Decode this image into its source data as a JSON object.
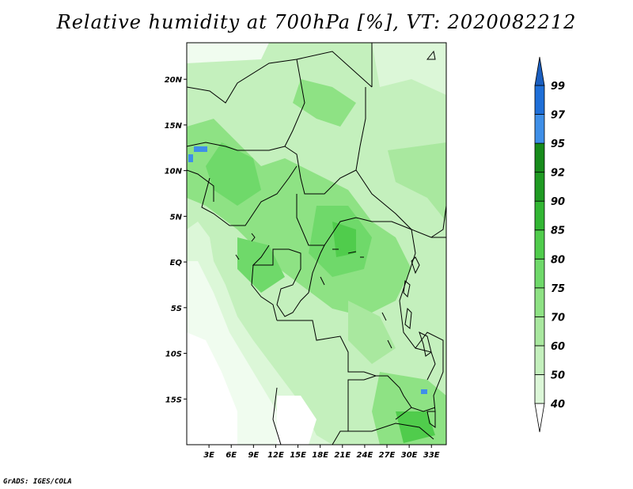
{
  "title": "Relative humidity at 700hPa [%], VT: 2020082212",
  "credit": "GrADS: IGES/COLA",
  "map": {
    "lon_range": [
      0,
      35
    ],
    "lat_range": [
      -20,
      24
    ],
    "x_ticks": [
      {
        "value": 3,
        "label": "3E"
      },
      {
        "value": 6,
        "label": "6E"
      },
      {
        "value": 9,
        "label": "9E"
      },
      {
        "value": 12,
        "label": "12E"
      },
      {
        "value": 15,
        "label": "15E"
      },
      {
        "value": 18,
        "label": "18E"
      },
      {
        "value": 21,
        "label": "21E"
      },
      {
        "value": 24,
        "label": "24E"
      },
      {
        "value": 27,
        "label": "27E"
      },
      {
        "value": 30,
        "label": "30E"
      },
      {
        "value": 33,
        "label": "33E"
      }
    ],
    "y_ticks": [
      {
        "value": 20,
        "label": "20N"
      },
      {
        "value": 15,
        "label": "15N"
      },
      {
        "value": 10,
        "label": "10N"
      },
      {
        "value": 5,
        "label": "5N"
      },
      {
        "value": 0,
        "label": "EQ"
      },
      {
        "value": -5,
        "label": "5S"
      },
      {
        "value": -10,
        "label": "10S"
      },
      {
        "value": -15,
        "label": "15S"
      }
    ]
  },
  "colorbar": {
    "levels": [
      {
        "label": "40",
        "color": "#f0fcef"
      },
      {
        "label": "50",
        "color": "#dcf7d8"
      },
      {
        "label": "60",
        "color": "#c4f0bd"
      },
      {
        "label": "70",
        "color": "#a9e89f"
      },
      {
        "label": "75",
        "color": "#8ee284"
      },
      {
        "label": "80",
        "color": "#6fd96a"
      },
      {
        "label": "85",
        "color": "#50cc4c"
      },
      {
        "label": "90",
        "color": "#32b633"
      },
      {
        "label": "92",
        "color": "#1f9a22"
      },
      {
        "label": "95",
        "color": "#178b1b"
      },
      {
        "label": "97",
        "color": "#3f8fe8"
      },
      {
        "label": "99",
        "color": "#1f6fd8"
      }
    ],
    "top_color": "#1a5ebf"
  }
}
